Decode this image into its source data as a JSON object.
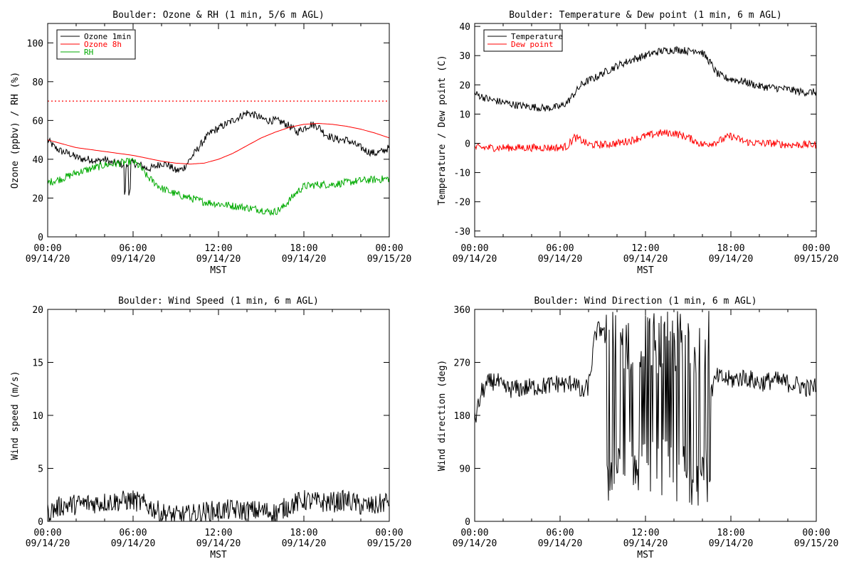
{
  "chart_data": [
    {
      "type": "line",
      "title": "Boulder: Ozone & RH (1 min, 5/6 m AGL)",
      "xlabel": "MST",
      "ylabel": "Ozone (ppbv) / RH (%)",
      "xlim_hours": [
        0,
        24
      ],
      "ylim": [
        0,
        110
      ],
      "yticks": [
        0,
        20,
        40,
        60,
        80,
        100
      ],
      "xtick_hours": [
        0,
        6,
        12,
        18,
        24
      ],
      "xtick_labels": [
        [
          "00:00",
          "09/14/20"
        ],
        [
          "06:00",
          "09/14/20"
        ],
        [
          "12:00",
          "09/14/20"
        ],
        [
          "18:00",
          "09/14/20"
        ],
        [
          "00:00",
          "09/15/20"
        ]
      ],
      "legend_position": "top-left",
      "hline": {
        "y": 70,
        "color": "#ff0000",
        "style": "dotted"
      },
      "series": [
        {
          "name": "Ozone 1min",
          "color": "#000000",
          "noisy": true,
          "x": [
            0,
            0.5,
            1,
            1.5,
            2,
            2.5,
            3,
            3.5,
            4,
            4.5,
            5,
            5.3,
            5.5,
            5.8,
            6,
            6.5,
            7,
            7.5,
            8,
            8.5,
            9,
            9.5,
            10,
            10.5,
            11,
            11.5,
            12,
            12.5,
            13,
            13.5,
            14,
            14.5,
            15,
            15.5,
            16,
            16.5,
            17,
            17.5,
            18,
            18.5,
            19,
            19.5,
            20,
            20.5,
            21,
            21.5,
            22,
            22.5,
            23,
            23.5,
            24
          ],
          "y": [
            50,
            46,
            44,
            43,
            41,
            40,
            40,
            39,
            40,
            38,
            38,
            37,
            36,
            38,
            38,
            37,
            35,
            36,
            38,
            37,
            34,
            35,
            40,
            45,
            50,
            54,
            56,
            58,
            60,
            62,
            64,
            63,
            61,
            60,
            60,
            59,
            57,
            54,
            56,
            58,
            57,
            53,
            51,
            50,
            50,
            48,
            46,
            44,
            43,
            44,
            46
          ]
        },
        {
          "name": "Ozone 8h",
          "color": "#ff0000",
          "noisy": false,
          "x": [
            0,
            2,
            4,
            6,
            8,
            9,
            10,
            11,
            12,
            13,
            14,
            15,
            16,
            17,
            18,
            19,
            20,
            21,
            22,
            23,
            24
          ],
          "y": [
            50,
            46,
            44,
            42,
            39,
            38,
            37.5,
            38,
            40,
            43,
            47,
            51,
            54,
            56.5,
            58,
            58.5,
            58,
            57,
            55.5,
            53.5,
            51
          ]
        },
        {
          "name": "RH",
          "color": "#00aa00",
          "noisy": true,
          "x": [
            0,
            1,
            2,
            3,
            4,
            5,
            6,
            6.5,
            7,
            8,
            9,
            10,
            11,
            12,
            13,
            14,
            15,
            15.5,
            16,
            16.5,
            17,
            17.5,
            18,
            19,
            20,
            21,
            22,
            23,
            24
          ],
          "y": [
            28,
            30,
            33,
            35,
            37,
            38,
            39,
            36,
            31,
            25,
            22,
            20,
            18,
            17,
            16,
            15,
            14,
            13,
            13,
            15,
            19,
            23,
            26,
            27,
            27,
            28,
            29,
            29.5,
            30
          ]
        }
      ]
    },
    {
      "type": "line",
      "title": "Boulder: Temperature & Dew point (1 min, 6 m AGL)",
      "xlabel": "MST",
      "ylabel": "Temperature / Dew point (C)",
      "xlim_hours": [
        0,
        24
      ],
      "ylim": [
        -32,
        41
      ],
      "yticks": [
        -30,
        -20,
        -10,
        0,
        10,
        20,
        30,
        40
      ],
      "xtick_hours": [
        0,
        6,
        12,
        18,
        24
      ],
      "xtick_labels": [
        [
          "00:00",
          "09/14/20"
        ],
        [
          "06:00",
          "09/14/20"
        ],
        [
          "12:00",
          "09/14/20"
        ],
        [
          "18:00",
          "09/14/20"
        ],
        [
          "00:00",
          "09/15/20"
        ]
      ],
      "legend_position": "top-left",
      "series": [
        {
          "name": "Temperature",
          "color": "#000000",
          "noisy": true,
          "x": [
            0,
            1,
            2,
            3,
            4,
            5,
            6,
            6.5,
            7,
            7.5,
            8,
            8.5,
            9,
            10,
            11,
            12,
            13,
            14,
            14.5,
            15,
            15.5,
            16,
            16.5,
            17,
            17.5,
            18,
            19,
            20,
            21,
            22,
            23,
            24
          ],
          "y": [
            17,
            15,
            14,
            13,
            12.5,
            12,
            12.5,
            14,
            17,
            20,
            21.5,
            22.5,
            24,
            26.5,
            28.5,
            30,
            31.5,
            32,
            32,
            31.5,
            32,
            31,
            28,
            24,
            22.5,
            22,
            21,
            19.5,
            19,
            18.5,
            17.5,
            17.5
          ]
        },
        {
          "name": "Dew point",
          "color": "#ff0000",
          "noisy": true,
          "x": [
            0,
            2,
            4,
            6,
            6.5,
            7,
            7.5,
            8,
            9,
            10,
            11,
            12,
            13,
            14,
            15,
            16,
            17,
            18,
            19,
            20,
            21,
            22,
            23,
            24
          ],
          "y": [
            -1.5,
            -1.5,
            -1.5,
            -1.5,
            -1,
            2,
            1,
            -0.5,
            -0.5,
            0,
            1,
            2.5,
            3.5,
            3.5,
            2,
            -0.5,
            0.5,
            2.5,
            0.5,
            0,
            0,
            -0.5,
            -0.5,
            -0.5
          ]
        }
      ]
    },
    {
      "type": "line",
      "title": "Boulder: Wind Speed (1 min, 6 m AGL)",
      "xlabel": "MST",
      "ylabel": "Wind speed (m/s)",
      "xlim_hours": [
        0,
        24
      ],
      "ylim": [
        0,
        20
      ],
      "yticks": [
        0,
        5,
        10,
        15,
        20
      ],
      "xtick_hours": [
        0,
        6,
        12,
        18,
        24
      ],
      "xtick_labels": [
        [
          "00:00",
          "09/14/20"
        ],
        [
          "06:00",
          "09/14/20"
        ],
        [
          "12:00",
          "09/14/20"
        ],
        [
          "18:00",
          "09/14/20"
        ],
        [
          "00:00",
          "09/15/20"
        ]
      ],
      "series": [
        {
          "color": "#000000",
          "noisy": true,
          "x": [
            0,
            1,
            2,
            3,
            4,
            5,
            6,
            7,
            8,
            9,
            10,
            11,
            12,
            13,
            14,
            15,
            16,
            17,
            18,
            19,
            20,
            21,
            22,
            23,
            24
          ],
          "y": [
            0.8,
            1.5,
            1.6,
            1.7,
            1.8,
            1.9,
            2.0,
            1.5,
            0.8,
            0.5,
            0.6,
            0.9,
            1.0,
            1.1,
            1.0,
            1.0,
            0.8,
            1.5,
            2.0,
            1.8,
            1.8,
            2.0,
            1.5,
            1.4,
            2.0
          ]
        }
      ]
    },
    {
      "type": "line",
      "title": "Boulder: Wind Direction (1 min, 6 m AGL)",
      "xlabel": "MST",
      "ylabel": "Wind direction (deg)",
      "xlim_hours": [
        0,
        24
      ],
      "ylim": [
        0,
        360
      ],
      "yticks": [
        0,
        90,
        180,
        270,
        360
      ],
      "xtick_hours": [
        0,
        6,
        12,
        18,
        24
      ],
      "xtick_labels": [
        [
          "00:00",
          "09/14/20"
        ],
        [
          "06:00",
          "09/14/20"
        ],
        [
          "12:00",
          "09/14/20"
        ],
        [
          "18:00",
          "09/14/20"
        ],
        [
          "00:00",
          "09/15/20"
        ]
      ],
      "series": [
        {
          "color": "#000000",
          "noisy": true,
          "x": [
            0,
            0.3,
            0.5,
            1,
            1.5,
            2,
            3,
            4,
            5,
            6,
            6.5,
            7,
            7.5,
            8,
            8.5,
            9,
            10,
            11,
            12,
            13,
            14,
            15,
            16,
            17,
            18,
            19,
            19.5,
            20,
            21,
            22,
            23,
            23.5,
            24
          ],
          "y": [
            170,
            200,
            220,
            235,
            240,
            225,
            225,
            228,
            230,
            235,
            230,
            240,
            215,
            230,
            320,
            330,
            200,
            180,
            180,
            180,
            180,
            180,
            180,
            245,
            240,
            245,
            240,
            235,
            240,
            235,
            230,
            225,
            230
          ]
        }
      ]
    }
  ]
}
